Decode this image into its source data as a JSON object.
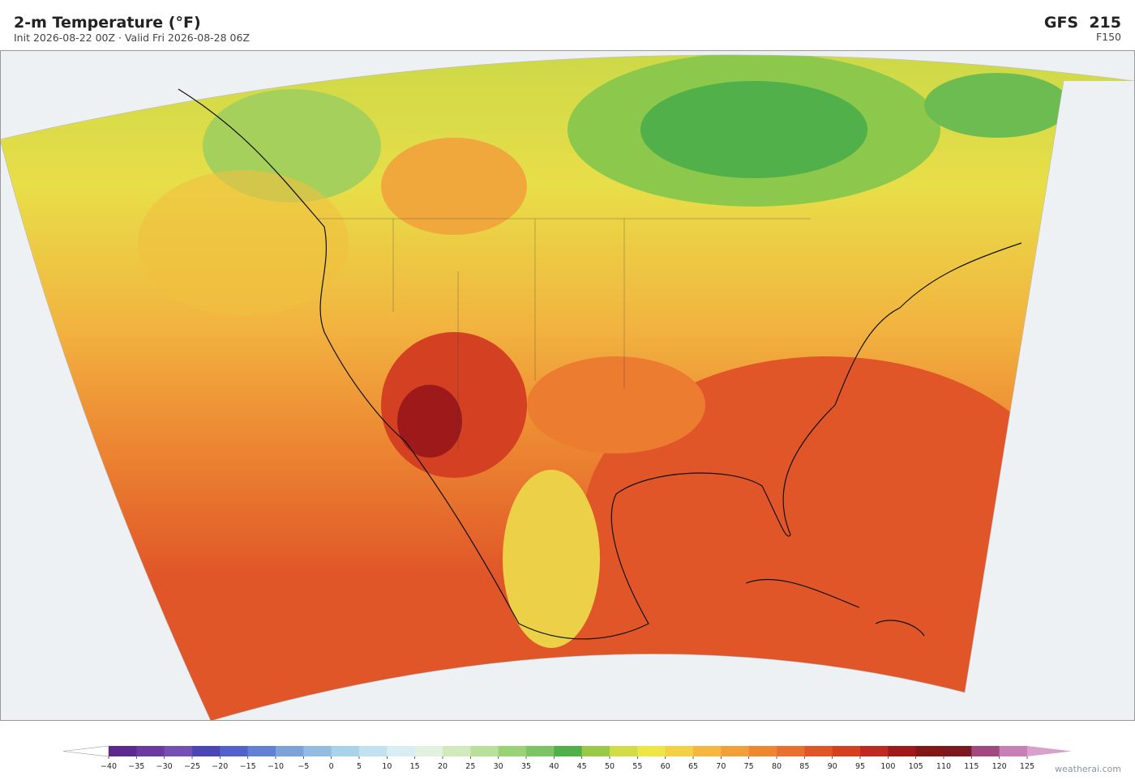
{
  "header": {
    "title": "2-m Temperature  (°F)",
    "subtitle": "Init 2026-08-22 00Z  ·  Valid Fri 2026-08-28 06Z",
    "model": "GFS  215",
    "forecast_hour": "F150"
  },
  "colorbar": {
    "ticks": [
      {
        "value": -40,
        "label": "−40"
      },
      {
        "value": -35,
        "label": "−35"
      },
      {
        "value": -30,
        "label": "−30"
      },
      {
        "value": -25,
        "label": "−25"
      },
      {
        "value": -20,
        "label": "−20"
      },
      {
        "value": -15,
        "label": "−15"
      },
      {
        "value": -10,
        "label": "−10"
      },
      {
        "value": -5,
        "label": "−5"
      },
      0,
      5,
      10,
      15,
      20,
      25,
      30,
      35,
      40,
      45,
      50,
      55,
      60,
      65,
      70,
      75,
      80,
      85,
      90,
      95,
      100,
      105,
      110,
      115,
      120,
      125
    ],
    "colors": [
      "#5b2a8c",
      "#6a3a9c",
      "#7450b0",
      "#4a46b6",
      "#5262c8",
      "#6480d2",
      "#7ca2da",
      "#92bce2",
      "#aad2ea",
      "#c2e2ef",
      "#d8eef2",
      "#e2f2e0",
      "#d0eabe",
      "#b8e09a",
      "#9cd276",
      "#7cc464",
      "#52b04a",
      "#9cc84a",
      "#d0dc48",
      "#ece646",
      "#f4d044",
      "#f4b842",
      "#f0a03a",
      "#ec8832",
      "#e87030",
      "#e05628",
      "#d44022",
      "#bc2a20",
      "#9e1a1a",
      "#801818",
      "#7a1a20",
      "#a04a80",
      "#c880b4"
    ],
    "under_color": "#ffffff",
    "over_color": "#d8a0cc"
  },
  "watermark": "weatherai.com"
}
